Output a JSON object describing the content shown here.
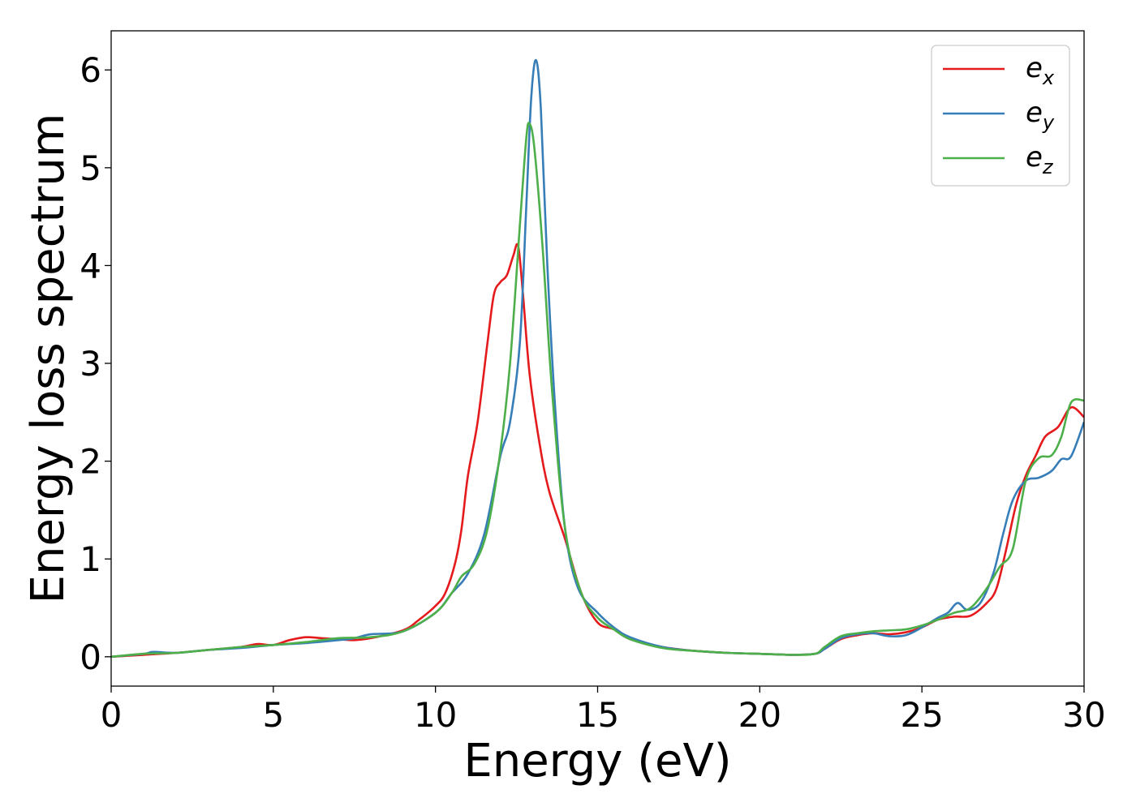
{
  "chart_data": {
    "type": "line",
    "title": "",
    "xlabel": "Energy (eV)",
    "ylabel": "Energy loss spectrum",
    "xlim": [
      0,
      30
    ],
    "ylim": [
      -0.3,
      6.4
    ],
    "xticks": [
      0,
      5,
      10,
      15,
      20,
      25,
      30
    ],
    "yticks": [
      0,
      1,
      2,
      3,
      4,
      5,
      6
    ],
    "grid": false,
    "legend_position": "top-right",
    "series": [
      {
        "name": "e",
        "subscript": "x",
        "color": "#e41a1c",
        "points": [
          [
            0,
            0.0
          ],
          [
            1,
            0.02
          ],
          [
            2,
            0.04
          ],
          [
            3,
            0.07
          ],
          [
            4,
            0.1
          ],
          [
            4.5,
            0.13
          ],
          [
            5,
            0.12
          ],
          [
            5.5,
            0.17
          ],
          [
            6,
            0.2
          ],
          [
            6.5,
            0.19
          ],
          [
            7,
            0.18
          ],
          [
            7.5,
            0.17
          ],
          [
            8,
            0.19
          ],
          [
            9,
            0.27
          ],
          [
            9.5,
            0.38
          ],
          [
            10,
            0.52
          ],
          [
            10.3,
            0.65
          ],
          [
            10.6,
            0.95
          ],
          [
            10.8,
            1.3
          ],
          [
            11,
            1.85
          ],
          [
            11.3,
            2.4
          ],
          [
            11.6,
            3.2
          ],
          [
            11.8,
            3.7
          ],
          [
            12,
            3.83
          ],
          [
            12.2,
            3.9
          ],
          [
            12.4,
            4.1
          ],
          [
            12.55,
            4.2
          ],
          [
            12.7,
            3.7
          ],
          [
            12.9,
            2.9
          ],
          [
            13.2,
            2.2
          ],
          [
            13.5,
            1.7
          ],
          [
            14,
            1.2
          ],
          [
            14.5,
            0.65
          ],
          [
            15,
            0.35
          ],
          [
            15.5,
            0.28
          ],
          [
            16,
            0.18
          ],
          [
            17,
            0.1
          ],
          [
            18,
            0.06
          ],
          [
            19,
            0.04
          ],
          [
            20,
            0.03
          ],
          [
            21,
            0.02
          ],
          [
            21.7,
            0.03
          ],
          [
            22,
            0.08
          ],
          [
            22.5,
            0.18
          ],
          [
            23,
            0.22
          ],
          [
            23.5,
            0.24
          ],
          [
            24,
            0.23
          ],
          [
            24.5,
            0.25
          ],
          [
            25,
            0.3
          ],
          [
            25.5,
            0.38
          ],
          [
            26,
            0.41
          ],
          [
            26.5,
            0.42
          ],
          [
            27,
            0.55
          ],
          [
            27.3,
            0.7
          ],
          [
            27.6,
            1.1
          ],
          [
            27.9,
            1.55
          ],
          [
            28.2,
            1.85
          ],
          [
            28.5,
            2.05
          ],
          [
            28.8,
            2.25
          ],
          [
            29.2,
            2.35
          ],
          [
            29.6,
            2.55
          ],
          [
            30,
            2.45
          ]
        ]
      },
      {
        "name": "e",
        "subscript": "y",
        "color": "#377eb8",
        "points": [
          [
            0,
            0.0
          ],
          [
            1,
            0.03
          ],
          [
            1.3,
            0.05
          ],
          [
            2,
            0.04
          ],
          [
            3,
            0.07
          ],
          [
            4,
            0.09
          ],
          [
            5,
            0.12
          ],
          [
            6,
            0.14
          ],
          [
            7,
            0.17
          ],
          [
            7.5,
            0.19
          ],
          [
            8,
            0.23
          ],
          [
            9,
            0.26
          ],
          [
            10,
            0.45
          ],
          [
            10.5,
            0.65
          ],
          [
            11,
            0.85
          ],
          [
            11.5,
            1.25
          ],
          [
            12,
            2.05
          ],
          [
            12.3,
            2.4
          ],
          [
            12.6,
            3.2
          ],
          [
            12.8,
            4.6
          ],
          [
            12.95,
            5.7
          ],
          [
            13.1,
            6.1
          ],
          [
            13.25,
            5.6
          ],
          [
            13.45,
            4.0
          ],
          [
            13.7,
            2.5
          ],
          [
            14,
            1.3
          ],
          [
            14.4,
            0.7
          ],
          [
            15,
            0.45
          ],
          [
            15.5,
            0.3
          ],
          [
            16,
            0.2
          ],
          [
            17,
            0.1
          ],
          [
            18,
            0.06
          ],
          [
            19,
            0.04
          ],
          [
            20,
            0.03
          ],
          [
            21,
            0.02
          ],
          [
            21.7,
            0.03
          ],
          [
            22,
            0.08
          ],
          [
            22.5,
            0.19
          ],
          [
            23,
            0.23
          ],
          [
            23.5,
            0.24
          ],
          [
            24,
            0.21
          ],
          [
            24.5,
            0.22
          ],
          [
            25,
            0.3
          ],
          [
            25.5,
            0.4
          ],
          [
            25.8,
            0.45
          ],
          [
            26.1,
            0.55
          ],
          [
            26.4,
            0.48
          ],
          [
            26.8,
            0.55
          ],
          [
            27.2,
            0.85
          ],
          [
            27.5,
            1.25
          ],
          [
            27.8,
            1.6
          ],
          [
            28.2,
            1.8
          ],
          [
            28.6,
            1.83
          ],
          [
            29,
            1.9
          ],
          [
            29.3,
            2.02
          ],
          [
            29.6,
            2.05
          ],
          [
            30,
            2.4
          ]
        ]
      },
      {
        "name": "e",
        "subscript": "z",
        "color": "#4daf4a",
        "points": [
          [
            0,
            0.0
          ],
          [
            1,
            0.03
          ],
          [
            2,
            0.04
          ],
          [
            3,
            0.07
          ],
          [
            4,
            0.1
          ],
          [
            5,
            0.12
          ],
          [
            6,
            0.15
          ],
          [
            7,
            0.19
          ],
          [
            8,
            0.2
          ],
          [
            9,
            0.26
          ],
          [
            10,
            0.45
          ],
          [
            10.5,
            0.65
          ],
          [
            10.8,
            0.82
          ],
          [
            11.2,
            0.95
          ],
          [
            11.6,
            1.3
          ],
          [
            12,
            2.1
          ],
          [
            12.3,
            3.0
          ],
          [
            12.6,
            4.4
          ],
          [
            12.8,
            5.3
          ],
          [
            12.9,
            5.45
          ],
          [
            13.05,
            5.2
          ],
          [
            13.3,
            4.2
          ],
          [
            13.6,
            2.7
          ],
          [
            14,
            1.3
          ],
          [
            14.5,
            0.65
          ],
          [
            15,
            0.4
          ],
          [
            15.5,
            0.28
          ],
          [
            16,
            0.18
          ],
          [
            17,
            0.09
          ],
          [
            18,
            0.06
          ],
          [
            19,
            0.04
          ],
          [
            20,
            0.03
          ],
          [
            21,
            0.02
          ],
          [
            21.7,
            0.03
          ],
          [
            22,
            0.1
          ],
          [
            22.5,
            0.21
          ],
          [
            23,
            0.24
          ],
          [
            23.5,
            0.26
          ],
          [
            24,
            0.27
          ],
          [
            24.5,
            0.28
          ],
          [
            25,
            0.32
          ],
          [
            25.5,
            0.38
          ],
          [
            26,
            0.45
          ],
          [
            26.5,
            0.5
          ],
          [
            27,
            0.7
          ],
          [
            27.4,
            0.92
          ],
          [
            27.8,
            1.1
          ],
          [
            28.2,
            1.8
          ],
          [
            28.6,
            2.03
          ],
          [
            29,
            2.06
          ],
          [
            29.3,
            2.25
          ],
          [
            29.6,
            2.6
          ],
          [
            30,
            2.62
          ]
        ]
      }
    ]
  }
}
